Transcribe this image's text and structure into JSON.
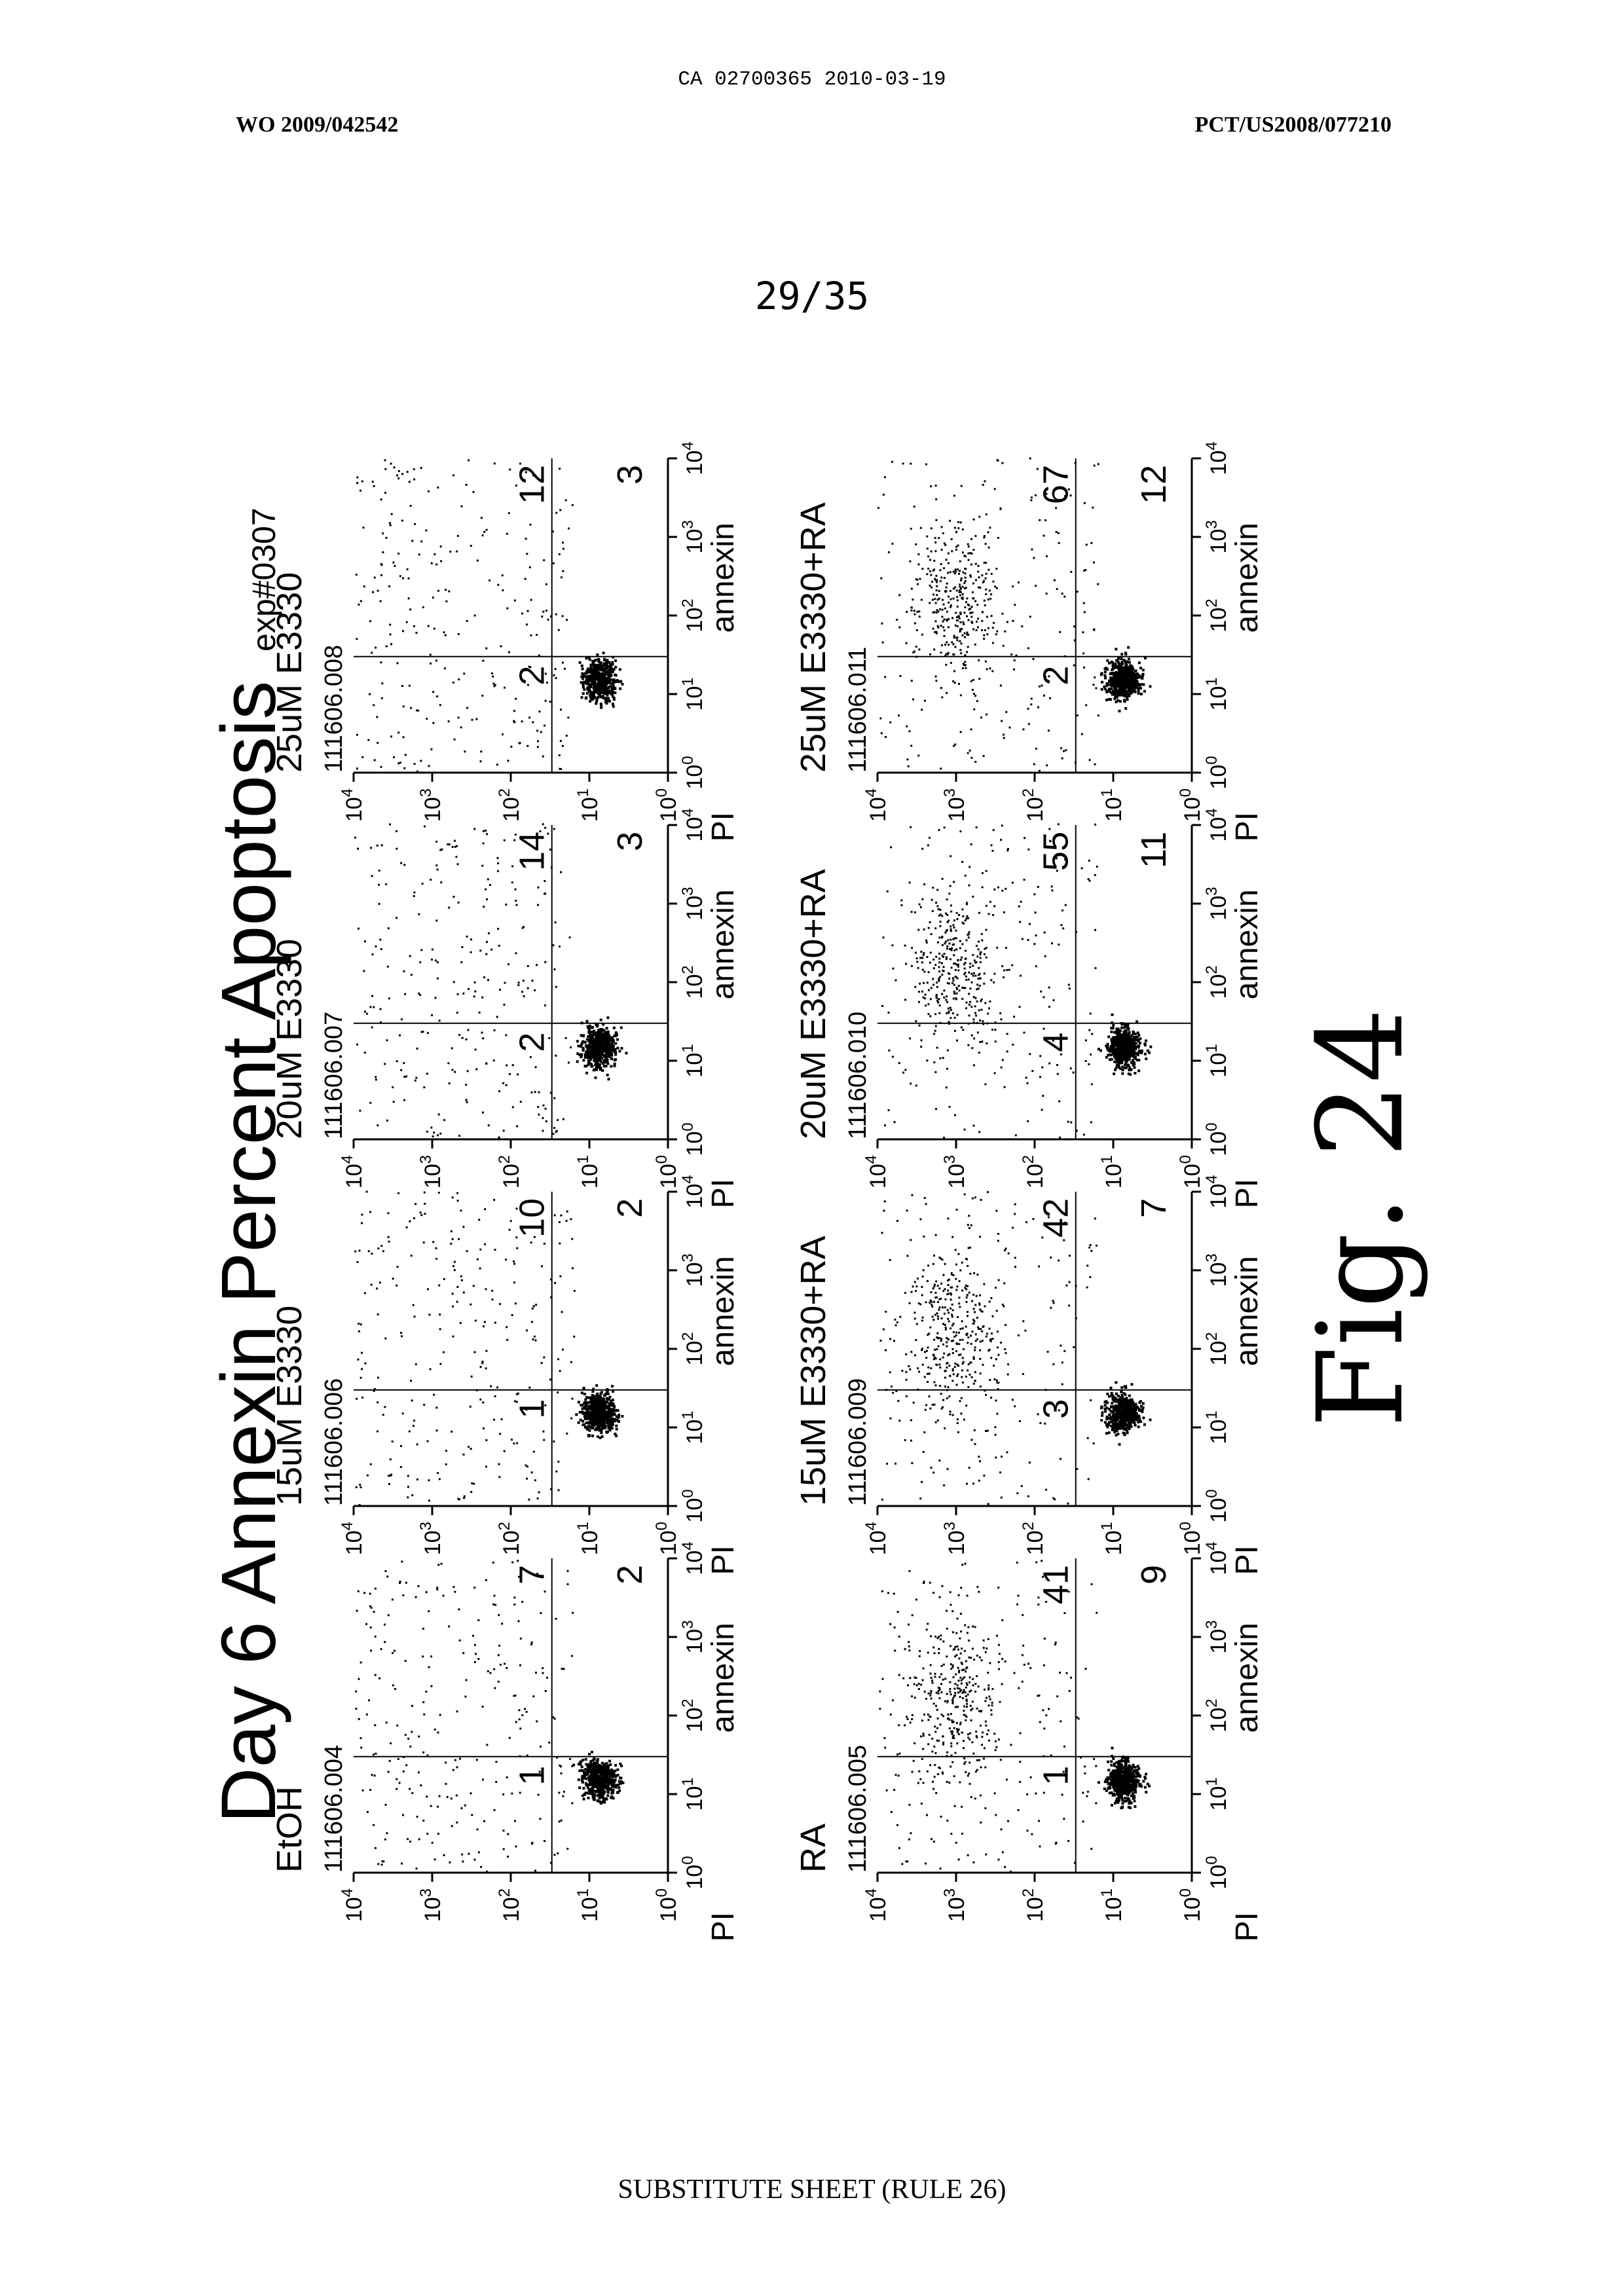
{
  "document": {
    "ca_number": "CA 02700365 2010-03-19",
    "wo_number": "WO 2009/042542",
    "pct_number": "PCT/US2008/077210",
    "page": "29/35",
    "footer": "SUBSTITUTE SHEET (RULE 26)",
    "fig_label": "Fig. 24"
  },
  "chart_data": {
    "type": "scatter",
    "title": "Day 6 Annexin Percent Apoptosis",
    "title_suffix": "exp#0307",
    "xlabel": "annexin",
    "ylabel": "PI",
    "scale": "log",
    "xlim": [
      1,
      10000
    ],
    "ylim": [
      1,
      10000
    ],
    "gate": {
      "x": 30,
      "y": 30
    },
    "tick_labels": [
      "10",
      "10",
      "10",
      "10",
      "10"
    ],
    "tick_exponents": [
      "0",
      "1",
      "2",
      "3",
      "4"
    ],
    "panels": [
      {
        "title": "EtOH",
        "sample_id": "111606.004",
        "ul": "1",
        "ur": "7",
        "lr": "2",
        "ra": false
      },
      {
        "title": "15uM E3330",
        "sample_id": "111606.006",
        "ul": "1",
        "ur": "10",
        "lr": "2",
        "ra": false
      },
      {
        "title": "20uM E3330",
        "sample_id": "111606.007",
        "ul": "2",
        "ur": "14",
        "lr": "3",
        "ra": false
      },
      {
        "title": "25uM E3330",
        "sample_id": "111606.008",
        "ul": "2",
        "ur": "12",
        "lr": "3",
        "ra": false
      },
      {
        "title": "RA",
        "sample_id": "111606.005",
        "ul": "1",
        "ur": "41",
        "lr": "9",
        "ra": true
      },
      {
        "title": "15uM E3330+RA",
        "sample_id": "111606.009",
        "ul": "3",
        "ur": "42",
        "lr": "7",
        "ra": true
      },
      {
        "title": "20uM E3330+RA",
        "sample_id": "111606.010",
        "ul": "4",
        "ur": "55",
        "lr": "11",
        "ra": true
      },
      {
        "title": "25uM E3330+RA",
        "sample_id": "111606.011",
        "ul": "2",
        "ur": "67",
        "lr": "12",
        "ra": true
      }
    ]
  }
}
